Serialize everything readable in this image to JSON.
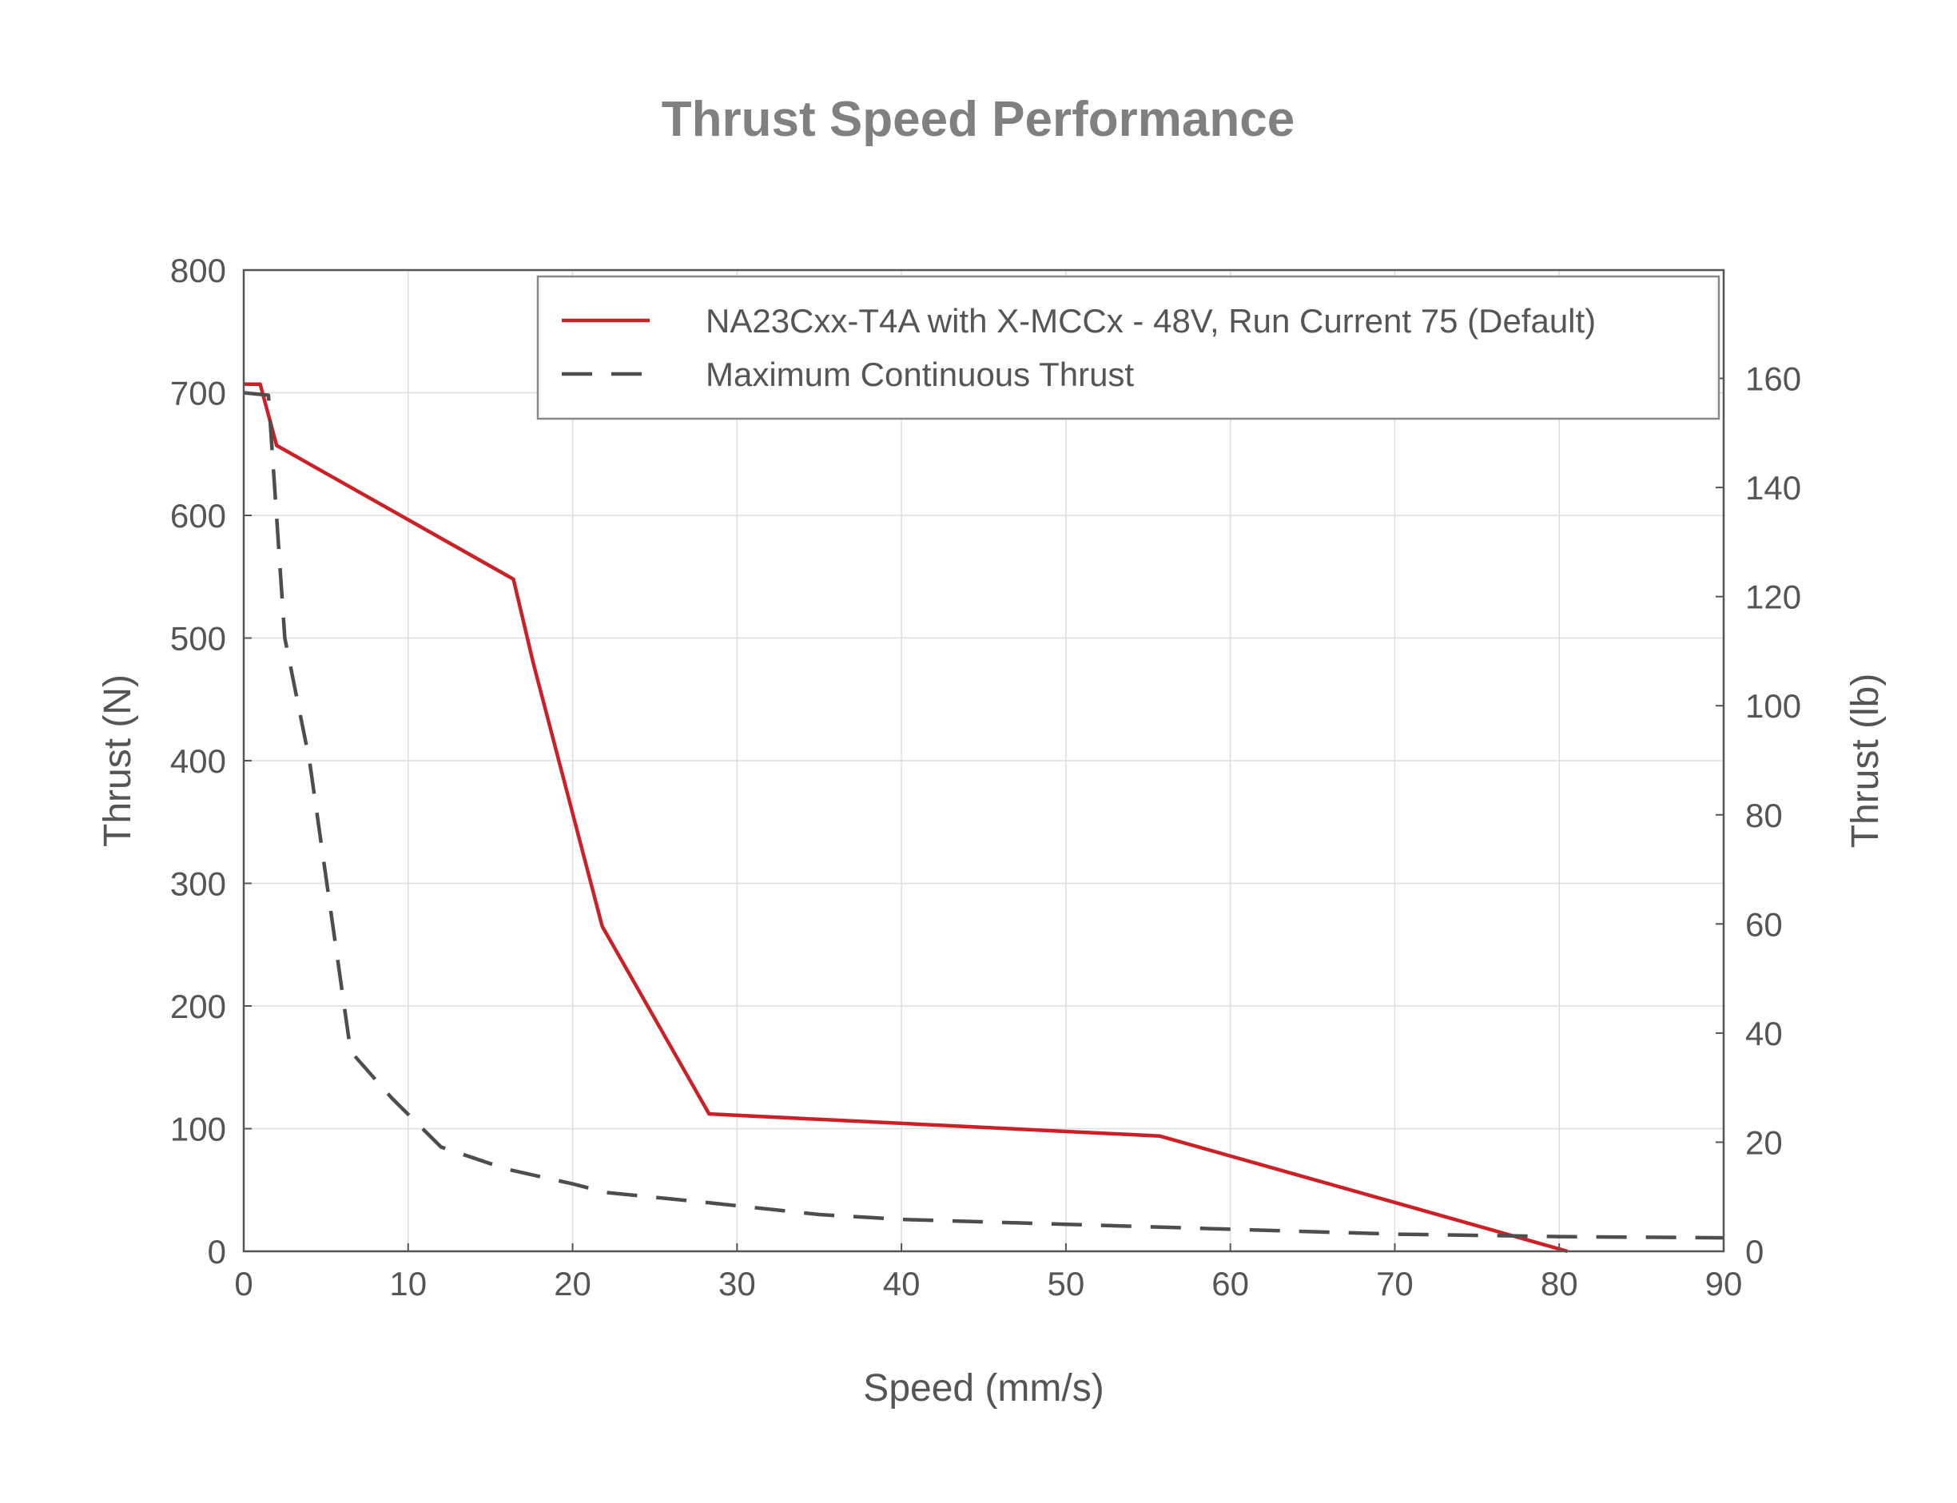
{
  "chart_data": {
    "type": "line",
    "title": "Thrust Speed Performance",
    "xlabel": "Speed (mm/s)",
    "ylabel": "Thrust (N)",
    "y2label": "Thrust (lb)",
    "xlim": [
      0,
      90
    ],
    "ylim": [
      0,
      800
    ],
    "y2lim": [
      0,
      179.85
    ],
    "xticks": [
      0,
      10,
      20,
      30,
      40,
      50,
      60,
      70,
      80,
      90
    ],
    "yticks": [
      0,
      100,
      200,
      300,
      400,
      500,
      600,
      700,
      800
    ],
    "y2ticks": [
      0,
      20,
      40,
      60,
      80,
      100,
      120,
      140,
      160
    ],
    "grid": true,
    "legend_position": "top-right",
    "series": [
      {
        "name": "NA23Cxx-T4A with X-MCCx - 48V, Run Current 75 (Default)",
        "color": "#cc2027",
        "dash": "solid",
        "x": [
          0,
          1,
          2,
          16.4,
          17.6,
          21.8,
          28.3,
          55.7,
          80.5
        ],
        "y": [
          707,
          707,
          657,
          548,
          480,
          265,
          112,
          94,
          0
        ]
      },
      {
        "name": "Maximum Continuous Thrust",
        "color": "#4d4d4d",
        "dash": "dashed",
        "x": [
          0,
          1.5,
          2.5,
          4,
          6.5,
          9,
          12,
          16,
          20,
          22,
          28,
          35,
          40,
          50,
          60,
          70,
          80,
          90
        ],
        "y": [
          700,
          698,
          500,
          400,
          163,
          125,
          85,
          67,
          55,
          48,
          40,
          30,
          26,
          22,
          18,
          14,
          12,
          11
        ]
      }
    ]
  }
}
